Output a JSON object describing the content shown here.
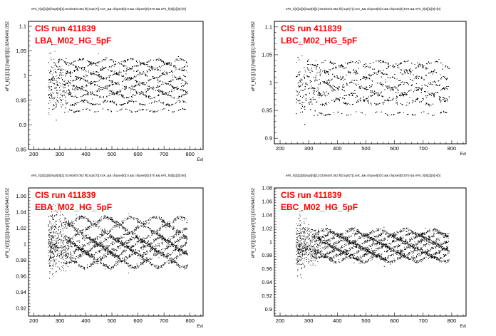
{
  "colors": {
    "overlay": "#ff0000",
    "points": "#000000",
    "axes": "#000000",
    "background": "#ffffff"
  },
  "chart_data": [
    {
      "type": "scatter",
      "name": "LBA",
      "title": "eFit_h[2][1][0]/sqrt[0][1]:024/64/0.052 fit[:sqrt(7)]:xvX_&& chipset[0]:0.&& chipset[0]:570 && eFit_h[0][1][0]>[0]",
      "overlay_run": "CIS run 411839",
      "overlay_label": "LBA_M02_HG_5pF",
      "xlabel": "Evt",
      "ylabel": "eFit_h[1][1][1]/sqrt[0][1]:024/64/0.052",
      "xlim": [
        180,
        850
      ],
      "ylim": [
        0.85,
        1.11
      ],
      "xticks": [
        "200",
        "300",
        "400",
        "500",
        "600",
        "700",
        "800"
      ],
      "yticks": [
        "0.85",
        "0.9",
        "0.95",
        "1",
        "1.05",
        "1.1"
      ],
      "x_range": [
        255,
        790
      ],
      "bands": [
        0.945,
        0.96,
        0.97,
        0.98,
        0.99,
        1.0,
        1.01,
        1.02,
        1.03
      ],
      "band_spread": 0.004,
      "outlier_band": 0.93,
      "early_spread": 0.05
    },
    {
      "type": "scatter",
      "name": "LBC",
      "title": "eFit_h[2][1][0]/sqrt[0][1]:024/64/0.052 fit[:sqrt(7)]:xvX_&& chipset[0]:0.&& chipset[0]:570 && eFit_h[0][1][0]>[0]",
      "overlay_run": "CIS run 411839",
      "overlay_label": "LBC_M02_HG_5pF",
      "xlabel": "Evt",
      "ylabel": "eFit_h[1][1][1]/sqrt[0][1]:024/64/0.052",
      "xlim": [
        180,
        850
      ],
      "ylim": [
        0.89,
        1.11
      ],
      "xticks": [
        "200",
        "300",
        "400",
        "500",
        "600",
        "700",
        "800"
      ],
      "yticks": [
        "0.9",
        "0.95",
        "1",
        "1.05",
        "1.1"
      ],
      "x_range": [
        255,
        790
      ],
      "bands": [
        0.965,
        0.975,
        0.985,
        0.995,
        1.005,
        1.015,
        1.025,
        1.035
      ],
      "band_spread": 0.005,
      "outlier_band": 0.945,
      "early_spread": 0.05
    },
    {
      "type": "scatter",
      "name": "EBA",
      "title": "eFit_h[2][1][0]/sqrt[0][1]:024/64/0.052 fit[:sqrt(7)]:xvX_&& chipset[0]:0.&& chipset[0]:570 && eFit_h[0][1][0]>[0]",
      "overlay_run": "CIS run 411839",
      "overlay_label": "EBA_M02_HG_5pF",
      "xlabel": "Evt",
      "ylabel": "eFit_h[3][1][1]/sqrt[0][1]:024/64/0.052",
      "xlim": [
        180,
        850
      ],
      "ylim": [
        0.91,
        1.07
      ],
      "xticks": [
        "200",
        "300",
        "400",
        "500",
        "600",
        "700",
        "800"
      ],
      "yticks": [
        "0.92",
        "0.94",
        "0.96",
        "0.98",
        "1",
        "1.02",
        "1.04",
        "1.06"
      ],
      "x_range": [
        255,
        790
      ],
      "bands": [
        0.975,
        0.985,
        0.99,
        0.995,
        1.0,
        1.005,
        1.01,
        1.02,
        1.03
      ],
      "band_spread": 0.004,
      "outlier_band": null,
      "early_spread": 0.04
    },
    {
      "type": "scatter",
      "name": "EBC",
      "title": "eFit_h[2][1][0]/sqrt[0][1]:024/64/0.052 fit[:sqrt(7)]:xvX_&& chipset[0]:0.&& chipset[0]:570 && eFit_h[0][1][0]>[0]",
      "overlay_run": "CIS run 411839",
      "overlay_label": "EBC_M02_HG_5pF",
      "xlabel": "Evt",
      "ylabel": "eFit_h[3][1][1]/sqrt[0][1]:024/64/0.052",
      "xlim": [
        180,
        850
      ],
      "ylim": [
        0.89,
        1.08
      ],
      "xticks": [
        "200",
        "300",
        "400",
        "500",
        "600",
        "700",
        "800"
      ],
      "yticks": [
        "0.9",
        "0.92",
        "0.94",
        "0.96",
        "0.98",
        "1",
        "1.02",
        "1.04",
        "1.06",
        "1.08"
      ],
      "x_range": [
        255,
        790
      ],
      "bands": [
        0.975,
        0.98,
        0.985,
        0.99,
        0.995,
        1.0,
        1.005,
        1.01,
        1.015
      ],
      "band_spread": 0.004,
      "outlier_band": null,
      "early_spread": 0.05
    }
  ]
}
